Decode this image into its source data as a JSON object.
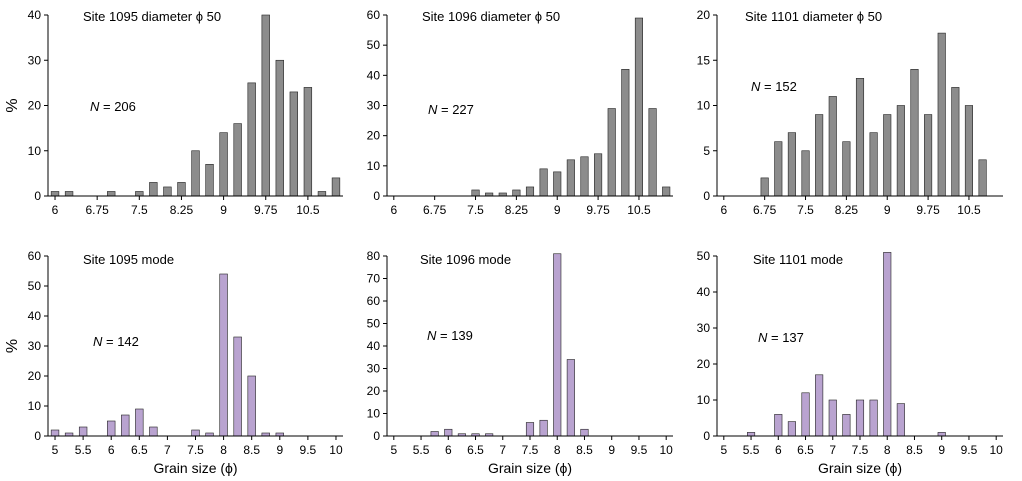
{
  "colors": {
    "gray_bar_fill": "#8c8c8c",
    "purple_bar_fill": "#b9a3d0",
    "bar_stroke": "#222222",
    "axis": "#000000"
  },
  "chart_data": [
    {
      "type": "bar",
      "title": "Site 1095 diameter ϕ 50",
      "n_label": "N",
      "n_value": "= 206",
      "ylabel": "%",
      "xlabel": "",
      "ylim": [
        0,
        40
      ],
      "yticks": [
        0,
        10,
        20,
        30,
        40
      ],
      "xlim": [
        5.875,
        11.125
      ],
      "xticks": [
        "6",
        "6.75",
        "7.5",
        "8.25",
        "9",
        "9.75",
        "10.5"
      ],
      "bin_width": 0.25,
      "fill_color": "#8c8c8c",
      "x": [
        6,
        6.25,
        6.5,
        6.75,
        7,
        7.25,
        7.5,
        7.75,
        8,
        8.25,
        8.5,
        8.75,
        9,
        9.25,
        9.5,
        9.75,
        10,
        10.25,
        10.5,
        10.75,
        11
      ],
      "values": [
        1,
        1,
        0,
        0,
        1,
        0,
        1,
        3,
        2,
        3,
        10,
        7,
        14,
        16,
        25,
        40,
        30,
        23,
        24,
        1,
        4
      ]
    },
    {
      "type": "bar",
      "title": "Site 1096 diameter ϕ 50",
      "n_label": "N",
      "n_value": "= 227",
      "ylabel": "",
      "xlabel": "",
      "ylim": [
        0,
        60
      ],
      "yticks": [
        0,
        10,
        20,
        30,
        40,
        50,
        60
      ],
      "xlim": [
        5.875,
        11.125
      ],
      "xticks": [
        "6",
        "6.75",
        "7.5",
        "8.25",
        "9",
        "9.75",
        "10.5"
      ],
      "bin_width": 0.25,
      "fill_color": "#8c8c8c",
      "x": [
        6,
        6.25,
        6.5,
        6.75,
        7,
        7.25,
        7.5,
        7.75,
        8,
        8.25,
        8.5,
        8.75,
        9,
        9.25,
        9.5,
        9.75,
        10,
        10.25,
        10.5,
        10.75,
        11
      ],
      "values": [
        0,
        0,
        0,
        0,
        0,
        0,
        2,
        1,
        1,
        2,
        3,
        9,
        8,
        12,
        13,
        14,
        29,
        42,
        59,
        29,
        3
      ]
    },
    {
      "type": "bar",
      "title": "Site 1101 diameter ϕ 50",
      "n_label": "N",
      "n_value": "= 152",
      "ylabel": "",
      "xlabel": "",
      "ylim": [
        0,
        20
      ],
      "yticks": [
        0,
        5,
        10,
        15,
        20
      ],
      "xlim": [
        5.875,
        11.125
      ],
      "xticks": [
        "6",
        "6.75",
        "7.5",
        "8.25",
        "9",
        "9.75",
        "10.5"
      ],
      "bin_width": 0.25,
      "fill_color": "#8c8c8c",
      "x": [
        6,
        6.25,
        6.5,
        6.75,
        7,
        7.25,
        7.5,
        7.75,
        8,
        8.25,
        8.5,
        8.75,
        9,
        9.25,
        9.5,
        9.75,
        10,
        10.25,
        10.5,
        10.75,
        11
      ],
      "values": [
        0,
        0,
        0,
        2,
        6,
        7,
        5,
        9,
        11,
        6,
        13,
        7,
        9,
        10,
        14,
        9,
        18,
        12,
        10,
        4,
        0
      ]
    },
    {
      "type": "bar",
      "title": "Site 1095 mode",
      "n_label": "N",
      "n_value": "= 142",
      "ylabel": "%",
      "xlabel": "Grain size (ϕ)",
      "ylim": [
        0,
        60
      ],
      "yticks": [
        0,
        10,
        20,
        30,
        40,
        50,
        60
      ],
      "xlim": [
        4.875,
        10.125
      ],
      "xticks": [
        "5",
        "5.5",
        "6",
        "6.5",
        "7",
        "7.5",
        "8",
        "8.5",
        "9",
        "9.5",
        "10"
      ],
      "bin_width": 0.25,
      "fill_color": "#b9a3d0",
      "x": [
        5,
        5.25,
        5.5,
        5.75,
        6,
        6.25,
        6.5,
        6.75,
        7,
        7.25,
        7.5,
        7.75,
        8,
        8.25,
        8.5,
        8.75,
        9,
        9.25,
        9.5,
        9.75,
        10
      ],
      "values": [
        2,
        1,
        3,
        0,
        5,
        7,
        9,
        3,
        0,
        0,
        2,
        1,
        54,
        33,
        20,
        1,
        1,
        0,
        0,
        0,
        0
      ]
    },
    {
      "type": "bar",
      "title": "Site 1096 mode",
      "n_label": "N",
      "n_value": "= 139",
      "ylabel": "",
      "xlabel": "Grain size (ϕ)",
      "ylim": [
        0,
        80
      ],
      "yticks": [
        0,
        10,
        20,
        30,
        40,
        50,
        60,
        70,
        80
      ],
      "xlim": [
        4.875,
        10.125
      ],
      "xticks": [
        "5",
        "5.5",
        "6",
        "6.5",
        "7",
        "7.5",
        "8",
        "8.5",
        "9",
        "9.5",
        "10"
      ],
      "bin_width": 0.25,
      "fill_color": "#b9a3d0",
      "x": [
        5,
        5.25,
        5.5,
        5.75,
        6,
        6.25,
        6.5,
        6.75,
        7,
        7.25,
        7.5,
        7.75,
        8,
        8.25,
        8.5,
        8.75,
        9,
        9.25,
        9.5,
        9.75,
        10
      ],
      "values": [
        0,
        0,
        0,
        2,
        3,
        1,
        1,
        1,
        0,
        0,
        6,
        7,
        81,
        34,
        3,
        0,
        0,
        0,
        0,
        0,
        0
      ]
    },
    {
      "type": "bar",
      "title": "Site 1101 mode",
      "n_label": "N",
      "n_value": "= 137",
      "ylabel": "",
      "xlabel": "Grain size (ϕ)",
      "ylim": [
        0,
        50
      ],
      "yticks": [
        0,
        10,
        20,
        30,
        40,
        50
      ],
      "xlim": [
        4.875,
        10.125
      ],
      "xticks": [
        "5",
        "5.5",
        "6",
        "6.5",
        "7",
        "7.5",
        "8",
        "8.5",
        "9",
        "9.5",
        "10"
      ],
      "bin_width": 0.25,
      "fill_color": "#b9a3d0",
      "x": [
        5,
        5.25,
        5.5,
        5.75,
        6,
        6.25,
        6.5,
        6.75,
        7,
        7.25,
        7.5,
        7.75,
        8,
        8.25,
        8.5,
        8.75,
        9,
        9.25,
        9.5,
        9.75,
        10
      ],
      "values": [
        0,
        0,
        1,
        0,
        6,
        4,
        12,
        17,
        10,
        6,
        10,
        10,
        51,
        9,
        0,
        0,
        1,
        0,
        0,
        0,
        0
      ]
    }
  ]
}
